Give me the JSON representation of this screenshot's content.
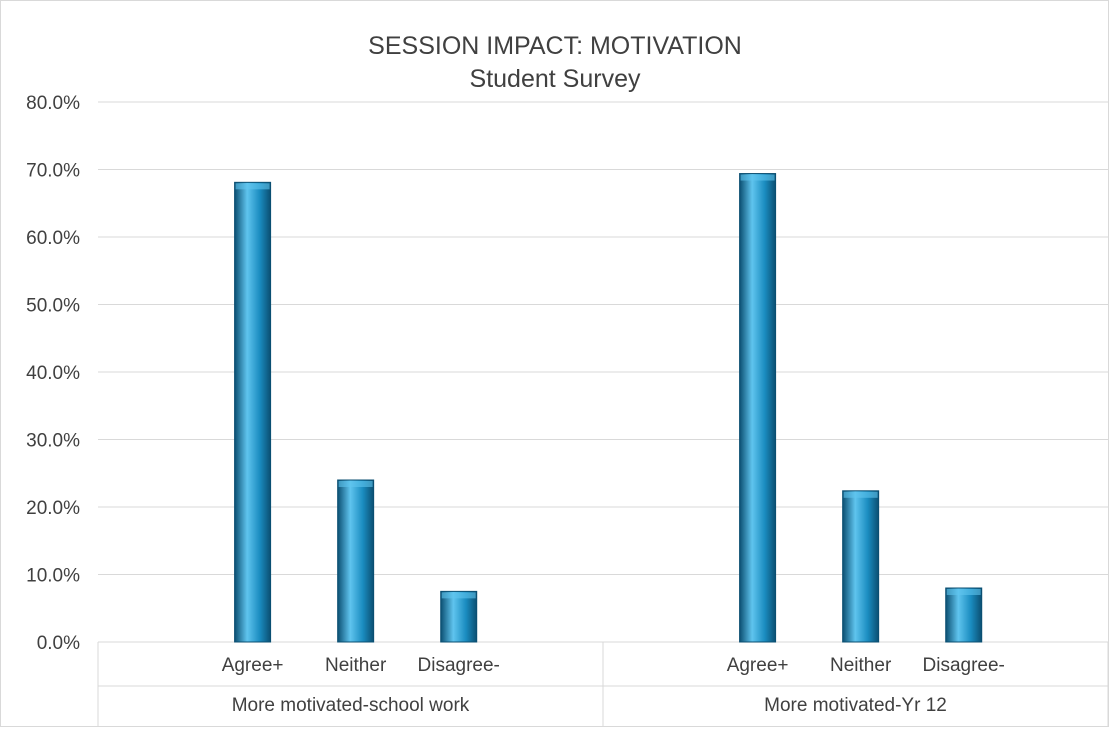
{
  "chart_data": {
    "type": "bar",
    "title": "SESSION IMPACT: MOTIVATION",
    "subtitle": "Student Survey",
    "ylim": [
      0,
      80
    ],
    "ytick_step": 10,
    "ytick_suffix": "%",
    "grid": true,
    "groups": [
      {
        "label": "More motivated-school work",
        "categories": [
          "Agree+",
          "Neither",
          "Disagree-"
        ],
        "values": [
          68.1,
          24.0,
          7.5
        ]
      },
      {
        "label": "More motivated-Yr 12",
        "categories": [
          "Agree+",
          "Neither",
          "Disagree-"
        ],
        "values": [
          69.4,
          22.4,
          8.0
        ]
      }
    ],
    "colors": {
      "bar": "#1a8cc0",
      "bar_light": "#5fc4ee",
      "bar_dark": "#0b4f72",
      "grid": "#d9d9d9",
      "text": "#404040"
    }
  }
}
